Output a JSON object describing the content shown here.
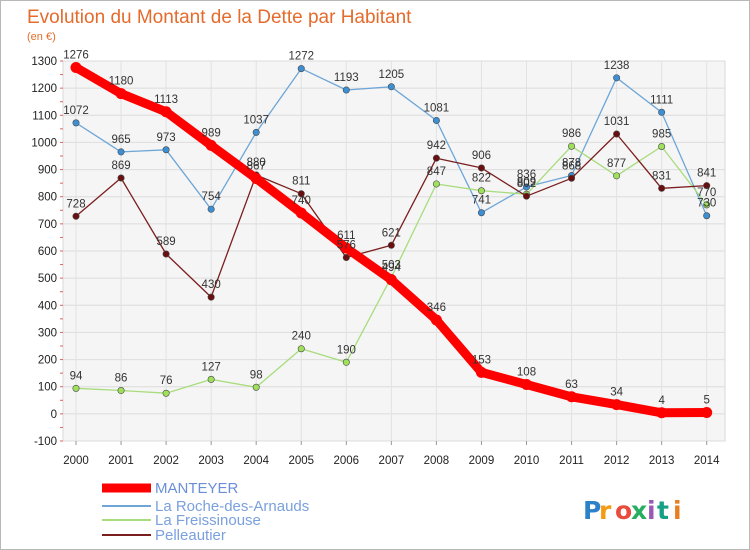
{
  "chart_data": {
    "type": "line",
    "title": "Evolution du Montant de la Dette par Habitant",
    "unit_label": "(en €)",
    "xlabel": "",
    "ylabel": "",
    "x": [
      "2000",
      "2001",
      "2002",
      "2003",
      "2004",
      "2005",
      "2006",
      "2007",
      "2008",
      "2009",
      "2010",
      "2011",
      "2012",
      "2013",
      "2014"
    ],
    "ylim": [
      -100,
      1300
    ],
    "yticks": [
      -100,
      0,
      100,
      200,
      300,
      400,
      500,
      600,
      700,
      800,
      900,
      1000,
      1100,
      1200,
      1300
    ],
    "grid": true,
    "legend_position": "bottom-left",
    "series": [
      {
        "name": "MANTEYER",
        "color": "#ff0000",
        "values": [
          1276,
          1180,
          1113,
          989,
          867,
          740,
          611,
          494,
          346,
          153,
          108,
          63,
          34,
          4,
          5
        ]
      },
      {
        "name": "La Roche-des-Arnauds",
        "color": "#6ea6d8",
        "values": [
          1072,
          965,
          973,
          754,
          1037,
          1272,
          1193,
          1205,
          1081,
          741,
          836,
          878,
          1238,
          1111,
          730
        ]
      },
      {
        "name": "La Freissinouse",
        "color": "#a8dc7c",
        "values": [
          94,
          86,
          76,
          127,
          98,
          240,
          190,
          503,
          847,
          822,
          809,
          986,
          877,
          985,
          770
        ]
      },
      {
        "name": "Pelleautier",
        "color": "#7b1e1e",
        "values": [
          728,
          869,
          589,
          430,
          880,
          811,
          576,
          621,
          942,
          906,
          802,
          868,
          1031,
          831,
          841
        ]
      }
    ]
  },
  "logo": {
    "text": "Proxiti",
    "letter_colors": [
      "#2c82c9",
      "#f39c12",
      "#e74c3c",
      "#27ae60",
      "#9b59b6",
      "#16a085",
      "#e67e22"
    ]
  }
}
